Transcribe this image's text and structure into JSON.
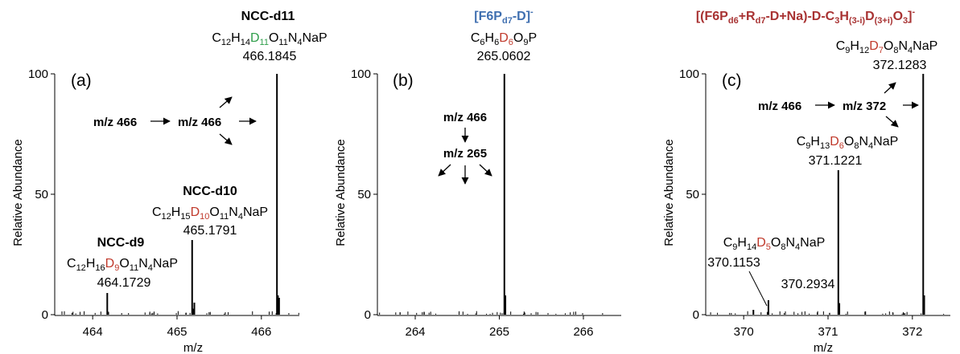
{
  "colors": {
    "axis": "#000000",
    "peak": "#000000",
    "green": "#2e9e4a",
    "red": "#c0392b",
    "blue": "#3f6fb0",
    "darkred": "#a83232"
  },
  "chart_data": [
    {
      "type": "line",
      "panel_label": "(a)",
      "xlabel": "m/z",
      "ylabel": "Relative Abundance",
      "xlim": [
        463.55,
        466.45
      ],
      "ylim": [
        0,
        100
      ],
      "x_ticks": [
        464,
        465,
        466
      ],
      "y_ticks": [
        0,
        50,
        100
      ],
      "x_tick_labels": [
        "464",
        "465",
        "466"
      ],
      "y_tick_labels": [
        "0",
        "50",
        "100"
      ],
      "peaks": [
        {
          "mz": 464.1729,
          "intensity": 9
        },
        {
          "mz": 465.1791,
          "intensity": 31
        },
        {
          "mz": 465.205,
          "intensity": 5
        },
        {
          "mz": 466.1845,
          "intensity": 100
        },
        {
          "mz": 466.21,
          "intensity": 7
        }
      ],
      "annotations": [
        {
          "mz": 466.1845,
          "name": "NCC-d11",
          "formula": "C12H14D11O11N4NaP",
          "mz_label": "466.1845"
        },
        {
          "mz": 465.1791,
          "name": "NCC-d10",
          "formula": "C12H15D10O11N4NaP",
          "mz_label": "465.1791"
        },
        {
          "mz": 464.1729,
          "name": "NCC-d9",
          "formula": "C12H16D9O11N4NaP",
          "mz_label": "464.1729"
        }
      ],
      "fragmentation_path": [
        "m/z 466",
        "m/z 466"
      ]
    },
    {
      "type": "line",
      "panel_label": "(b)",
      "xlabel": "",
      "ylabel": "Relative Abundance",
      "xlim": [
        263.55,
        266.45
      ],
      "ylim": [
        0,
        100
      ],
      "x_ticks": [
        264,
        265,
        266
      ],
      "y_ticks": [
        0,
        50,
        100
      ],
      "x_tick_labels": [
        "264",
        "265",
        "266"
      ],
      "y_tick_labels": [
        "0",
        "50",
        "100"
      ],
      "peaks": [
        {
          "mz": 265.0602,
          "intensity": 100
        }
      ],
      "annotations": [
        {
          "mz": 265.0602,
          "name": "[F6Pd7-D]-",
          "formula": "C6H6D6O9P",
          "mz_label": "265.0602"
        }
      ],
      "fragmentation_path": [
        "m/z 466",
        "m/z 265"
      ]
    },
    {
      "type": "line",
      "panel_label": "(c)",
      "xlabel": "m/z",
      "ylabel": "Relative Abundance",
      "xlim": [
        369.55,
        372.45
      ],
      "ylim": [
        0,
        100
      ],
      "x_ticks": [
        370,
        371,
        372
      ],
      "y_ticks": [
        0,
        50,
        100
      ],
      "x_tick_labels": [
        "370",
        "371",
        "372"
      ],
      "y_tick_labels": [
        "0",
        "50",
        "100"
      ],
      "peaks": [
        {
          "mz": 370.1153,
          "intensity": 2
        },
        {
          "mz": 370.2934,
          "intensity": 6
        },
        {
          "mz": 371.1221,
          "intensity": 60
        },
        {
          "mz": 372.1283,
          "intensity": 100
        }
      ],
      "annotations": [
        {
          "mz": 372.1283,
          "name": "[(F6Pd6+Rd7-D+Na)-D-C3H(3-i)D(3+i)O3]-",
          "formula": "C9H12D7O8N4NaP",
          "mz_label": "372.1283"
        },
        {
          "mz": 371.1221,
          "name": "",
          "formula": "C9H13D6O8N4NaP",
          "mz_label": "371.1221"
        },
        {
          "mz": 370.1153,
          "name": "",
          "formula": "C9H14D5O8N4NaP",
          "mz_label": "370.1153"
        },
        {
          "mz": 370.2934,
          "name": "",
          "formula": "",
          "mz_label": "370.2934"
        }
      ],
      "fragmentation_path": [
        "m/z 466",
        "m/z 372"
      ]
    }
  ],
  "text": {
    "a": {
      "label": "(a)",
      "ylabel": "Relative Abundance",
      "xlabel": "m/z",
      "name_d11": "NCC-d11",
      "mz_d11": "466.1845",
      "name_d10": "NCC-d10",
      "mz_d10": "465.1791",
      "name_d9": "NCC-d9",
      "mz_d9": "464.1729",
      "path1": "m/z 466",
      "path2": "m/z 466"
    },
    "b": {
      "label": "(b)",
      "ylabel": "Relative Abundance",
      "mz_main": "265.0602",
      "path1": "m/z 466",
      "path2": "m/z 265"
    },
    "c": {
      "label": "(c)",
      "ylabel": "Relative Abundance",
      "xlabel": "m/z",
      "mz_372": "372.1283",
      "mz_371": "371.1221",
      "mz_370a": "370.1153",
      "mz_370b": "370.2934",
      "path1": "m/z 466",
      "path2": "m/z 372"
    },
    "formula": {
      "C": "C",
      "H": "H",
      "D": "D",
      "O": "O",
      "N": "N",
      "NaP": "NaP",
      "P": "P",
      "n12": "12",
      "n14": "14",
      "n11": "11",
      "n4": "4",
      "n15": "15",
      "n10": "10",
      "n16": "16",
      "n9": "9",
      "n6": "6",
      "n7": "7",
      "n8": "8",
      "n13": "13",
      "n5": "5"
    },
    "ion_b": {
      "open": "[F6P",
      "sub": "d7",
      "mid": "-D]",
      "sup": "-"
    },
    "ion_c": {
      "p1": "[(F6P",
      "s1": "d6",
      "p2": "+R",
      "s2": "d7",
      "p3": "-D+Na)-D-C",
      "s3": "3",
      "p4": "H",
      "s4": "(3-i)",
      "p5": "D",
      "s5": "(3+i)",
      "p6": "O",
      "s6": "3",
      "p7": "]",
      "sup": "-"
    }
  }
}
